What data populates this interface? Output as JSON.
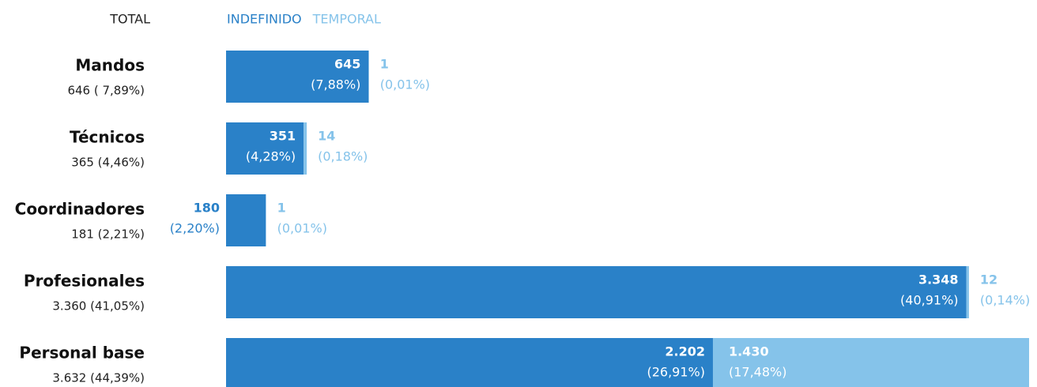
{
  "chart_data": {
    "type": "bar",
    "orientation": "horizontal",
    "stacked": true,
    "total_header": "TOTAL",
    "categories": [
      "Mandos",
      "Técnicos",
      "Coordinadores",
      "Profesionales",
      "Personal base"
    ],
    "total_labels": [
      "646 ( 7,89%)",
      "365 (4,46%)",
      "181 (2,21%)",
      "3.360 (41,05%)",
      "3.632 (44,39%)"
    ],
    "series": [
      {
        "name": "INDEFINIDO",
        "color": "#2a81c8",
        "values": [
          645,
          351,
          180,
          3348,
          2202
        ],
        "value_labels": [
          "645",
          "351",
          "180",
          "3.348",
          "2.202"
        ],
        "percent_labels": [
          "(7,88%)",
          "(4,28%)",
          "(2,20%)",
          "(40,91%)",
          "(26,91%)"
        ]
      },
      {
        "name": "TEMPORAL",
        "color": "#85c3ea",
        "values": [
          1,
          14,
          1,
          12,
          1430
        ],
        "value_labels": [
          "1",
          "14",
          "1",
          "12",
          "1.430"
        ],
        "percent_labels": [
          "(0,01%)",
          "(0,18%)",
          "(0,01%)",
          "(0,14%)",
          "(17,48%)"
        ]
      }
    ]
  }
}
